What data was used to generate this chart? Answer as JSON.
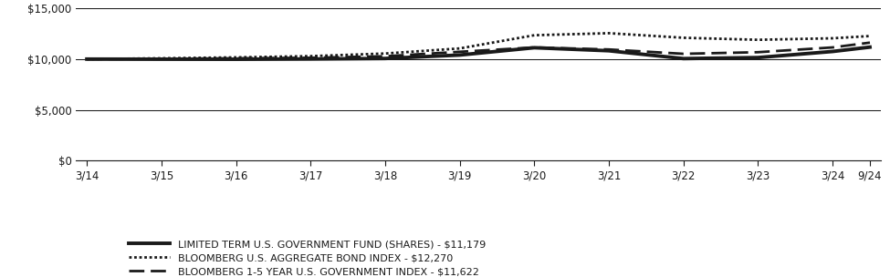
{
  "x_labels": [
    "3/14",
    "3/15",
    "3/16",
    "3/17",
    "3/18",
    "3/19",
    "3/20",
    "3/21",
    "3/22",
    "3/23",
    "3/24",
    "9/24"
  ],
  "x_positions": [
    0,
    1,
    2,
    3,
    4,
    5,
    6,
    7,
    8,
    9,
    10,
    10.5
  ],
  "ylim": [
    0,
    15000
  ],
  "yticks": [
    0,
    5000,
    10000,
    15000
  ],
  "ytick_labels": [
    "$0",
    "$5,000",
    "$10,000",
    "$15,000"
  ],
  "fund_values": [
    10000,
    9990,
    9985,
    10010,
    10060,
    10400,
    11120,
    10820,
    10050,
    10150,
    10750,
    11179
  ],
  "agg_bond_values": [
    10000,
    10080,
    10170,
    10290,
    10550,
    11050,
    12350,
    12550,
    12100,
    11900,
    12050,
    12270
  ],
  "gov_index_values": [
    10000,
    10030,
    10080,
    10130,
    10280,
    10720,
    11150,
    10950,
    10520,
    10680,
    11150,
    11622
  ],
  "fund_label": "LIMITED TERM U.S. GOVERNMENT FUND (SHARES) - $11,179",
  "agg_bond_label": "BLOOMBERG U.S. AGGREGATE BOND INDEX - $12,270",
  "gov_index_label": "BLOOMBERG 1-5 YEAR U.S. GOVERNMENT INDEX - $11,622",
  "line_color": "#1a1a1a",
  "bg_color": "#ffffff",
  "fund_linewidth": 2.8,
  "other_linewidth": 2.0,
  "fontsize_ticks": 8.5,
  "fontsize_legend": 8.0
}
